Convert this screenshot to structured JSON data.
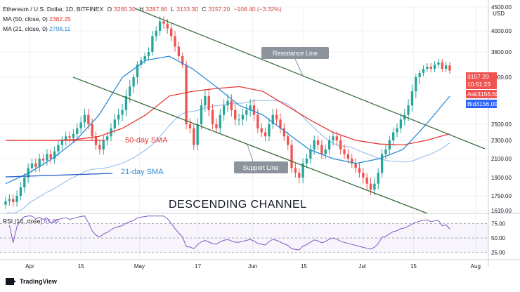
{
  "header": {
    "symbol": "Ethereum / U.S. Dollar, 1D, BITFINEX",
    "open_label": "O",
    "open": "3265.30",
    "high_label": "H",
    "high": "3287.66",
    "low_label": "L",
    "low": "3133.30",
    "close_label": "C",
    "close": "3157.20",
    "change": "−108.40 (−3.32%)",
    "ma50_label": "MA (50, close, 0)",
    "ma50_value": "2382.25",
    "ma21_label": "MA (21, close, 0)",
    "ma21_value": "2798.11",
    "rsi_label": "RSI (14, close)",
    "rsi_value": "65.00"
  },
  "price_box": {
    "price": "3157.20",
    "countdown": "10:51:23"
  },
  "ask": {
    "label": "Ask",
    "value": "3156.50"
  },
  "bid": {
    "label": "Bid",
    "value": "3156.00"
  },
  "brand": "TradingView",
  "colors": {
    "up": "#26a69a",
    "down": "#ef5350",
    "ma50": "#e53935",
    "ma21": "#2a8bd6",
    "ma_long": "#8cb7ea",
    "rsi": "#7e57c2",
    "trend": "#3f6e3f"
  },
  "chart_data": {
    "type": "candlestick",
    "title": "Ethereum / U.S. Dollar, 1D, BITFINEX",
    "y_axis": {
      "currency": "USD",
      "ticks": [
        4500,
        4000,
        3600,
        3000,
        2500,
        2300,
        2100,
        1900,
        1750,
        1610
      ],
      "tick_labels": [
        "4500.00",
        "4000.00",
        "3600.00",
        "3000.00",
        "2500.00",
        "2300.00",
        "2100.00",
        "1900.00",
        "1750.00",
        "1610.00"
      ],
      "ylim": [
        1610,
        4500
      ]
    },
    "x_axis": {
      "tick_labels": [
        "Apr",
        "15",
        "May",
        "17",
        "Jun",
        "15",
        "Jul",
        "15",
        "Aug",
        "16"
      ],
      "tick_dates": [
        "2021-04-01",
        "2021-04-15",
        "2021-05-01",
        "2021-05-17",
        "2021-06-01",
        "2021-06-15",
        "2021-07-01",
        "2021-07-15",
        "2021-08-01",
        "2021-08-16"
      ],
      "start": "2021-03-25"
    },
    "candles_close": [
      1700,
      1720,
      1690,
      1750,
      1820,
      1900,
      2000,
      2050,
      2010,
      2100,
      2080,
      2150,
      2100,
      2180,
      2250,
      2300,
      2350,
      2330,
      2380,
      2450,
      2520,
      2600,
      2500,
      2350,
      2250,
      2200,
      2300,
      2350,
      2450,
      2550,
      2600,
      2650,
      2800,
      2900,
      3000,
      3300,
      3400,
      3500,
      3600,
      3900,
      4000,
      4200,
      4150,
      4050,
      3900,
      3700,
      3500,
      3300,
      2500,
      2450,
      2250,
      2500,
      2700,
      2800,
      2650,
      2500,
      2450,
      2600,
      2700,
      2750,
      2650,
      2550,
      2550,
      2600,
      2650,
      2700,
      2600,
      2450,
      2400,
      2350,
      2500,
      2600,
      2550,
      2450,
      2350,
      2250,
      2000,
      1950,
      1900,
      2050,
      2100,
      2200,
      2300,
      2250,
      2150,
      2200,
      2300,
      2350,
      2300,
      2200,
      2150,
      2100,
      2050,
      2000,
      1950,
      1900,
      1850,
      1800,
      1850,
      1950,
      2150,
      2200,
      2300,
      2400,
      2450,
      2550,
      2600,
      2700,
      2850,
      3000,
      3100,
      3200,
      3250,
      3200,
      3300,
      3350,
      3200,
      3280,
      3157
    ],
    "series": [
      {
        "name": "MA (50, close, 0)",
        "value_last": 2382.25
      },
      {
        "name": "MA (21, close, 0)",
        "value_last": 2798.11
      }
    ],
    "ma50_path": [
      2300,
      2300,
      2300,
      2310,
      2350,
      2450,
      2600,
      2800,
      2850,
      2880,
      2900,
      2850,
      2700,
      2550,
      2400,
      2300,
      2260,
      2250,
      2300,
      2382
    ],
    "ma21_path": [
      1850,
      1950,
      2100,
      2300,
      2600,
      3000,
      3400,
      3500,
      3200,
      2900,
      2700,
      2600,
      2400,
      2200,
      2100,
      2050,
      2100,
      2200,
      2500,
      2798
    ],
    "annotations": [
      {
        "text": "Resistance Line",
        "type": "trendline"
      },
      {
        "text": "Support Line",
        "type": "trendline"
      },
      {
        "text": "50-day SMA"
      },
      {
        "text": "21-day SMA"
      },
      {
        "text": "DESCENDING CHANNEL"
      }
    ],
    "rsi": {
      "name": "RSI (14, close)",
      "last": 65.0,
      "levels": [
        75.0,
        50.0,
        25.0
      ],
      "tick_labels": [
        "75.00",
        "50.00",
        "25.00"
      ],
      "ylim": [
        15,
        90
      ]
    }
  }
}
